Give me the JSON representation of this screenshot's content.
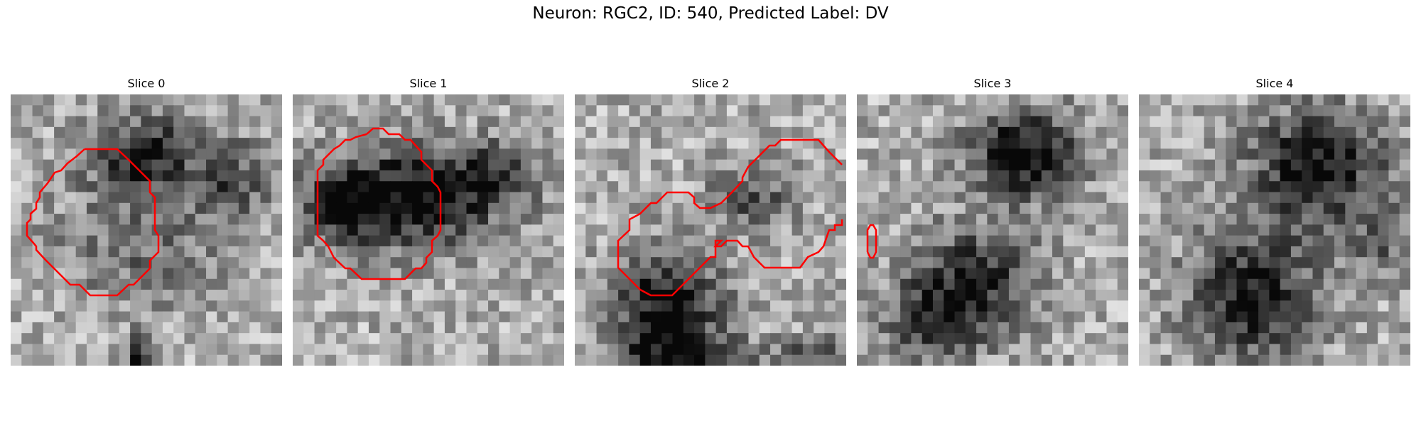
{
  "figure": {
    "title": "Neuron: RGC2, ID: 540, Predicted Label: DV"
  },
  "panels": [
    {
      "title": "Slice 0",
      "pattern": "blob-upper-right",
      "outline": "cell-outline-red"
    },
    {
      "title": "Slice 1",
      "pattern": "blob-upper-dark",
      "outline": "cell-outline-red"
    },
    {
      "title": "Slice 2",
      "pattern": "blobs-lower-and-upper-right",
      "outline": "cell-outline-red"
    },
    {
      "title": "Slice 3",
      "pattern": "two-dark-blobs",
      "outline": "small-outline-red"
    },
    {
      "title": "Slice 4",
      "pattern": "two-dark-blobs",
      "outline": "none"
    }
  ],
  "colors": {
    "contour": "#ff0000",
    "colormap": "grayscale"
  }
}
